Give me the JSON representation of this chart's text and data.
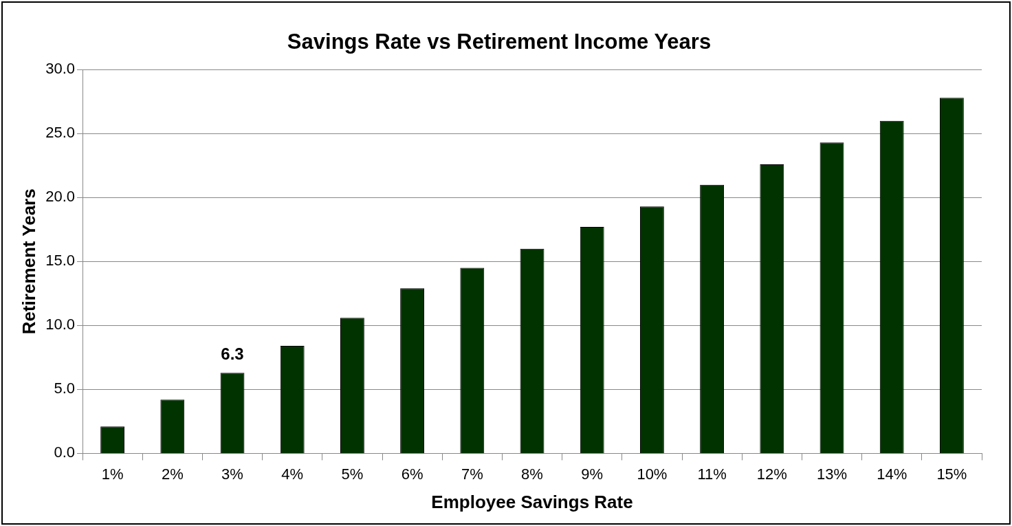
{
  "chart_data": {
    "type": "bar",
    "title": "Savings Rate vs Retirement Income Years",
    "xlabel": "Employee Savings Rate",
    "ylabel": "Retirement Years",
    "categories": [
      "1%",
      "2%",
      "3%",
      "4%",
      "5%",
      "6%",
      "7%",
      "8%",
      "9%",
      "10%",
      "11%",
      "12%",
      "13%",
      "14%",
      "15%"
    ],
    "values": [
      2.1,
      4.2,
      6.3,
      8.4,
      10.6,
      12.9,
      14.5,
      16.0,
      17.7,
      19.3,
      21.0,
      22.6,
      24.3,
      26.0,
      27.8
    ],
    "value_labels": [
      null,
      null,
      "6.3",
      null,
      null,
      null,
      null,
      null,
      null,
      null,
      null,
      null,
      null,
      null,
      null
    ],
    "color": "#003300",
    "ylim": [
      0,
      30
    ],
    "yticks": [
      {
        "value": 0,
        "label": "0.0"
      },
      {
        "value": 5,
        "label": "5.0"
      },
      {
        "value": 10,
        "label": "10.0"
      },
      {
        "value": 15,
        "label": "15.0"
      },
      {
        "value": 20,
        "label": "20.0"
      },
      {
        "value": 25,
        "label": "25.0"
      },
      {
        "value": 30,
        "label": "30.0"
      }
    ],
    "grid": "y"
  }
}
